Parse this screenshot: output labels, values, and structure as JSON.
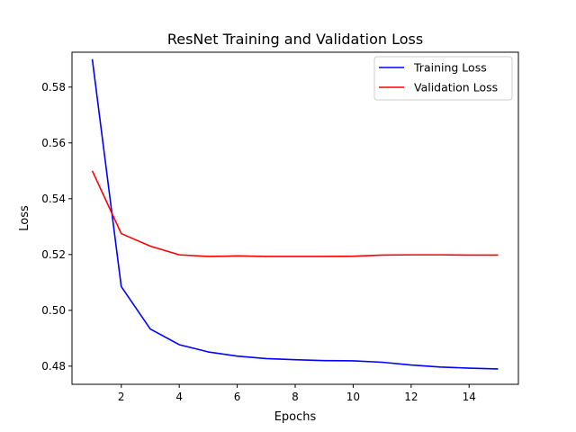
{
  "chart_data": {
    "type": "line",
    "title": "ResNet Training and Validation Loss",
    "xlabel": "Epochs",
    "ylabel": "Loss",
    "xlim": [
      0.3,
      15.7
    ],
    "ylim": [
      0.4735,
      0.5925
    ],
    "xticks": [
      2,
      4,
      6,
      8,
      10,
      12,
      14
    ],
    "yticks": [
      0.48,
      0.5,
      0.52,
      0.54,
      0.56,
      0.58
    ],
    "grid": false,
    "legend_position": "top-right",
    "x": [
      1,
      2,
      3,
      4,
      5,
      6,
      7,
      8,
      9,
      10,
      11,
      12,
      13,
      14,
      15
    ],
    "series": [
      {
        "name": "Training Loss",
        "color": "#0000ff",
        "values": [
          0.59,
          0.5085,
          0.4933,
          0.4877,
          0.4851,
          0.4836,
          0.4827,
          0.4823,
          0.482,
          0.4819,
          0.4814,
          0.4804,
          0.4797,
          0.4793,
          0.479
        ]
      },
      {
        "name": "Validation Loss",
        "color": "#ff0000",
        "values": [
          0.55,
          0.5275,
          0.523,
          0.5199,
          0.5193,
          0.5195,
          0.5193,
          0.5193,
          0.5193,
          0.5194,
          0.5198,
          0.5199,
          0.5199,
          0.5198,
          0.5198
        ]
      }
    ]
  }
}
